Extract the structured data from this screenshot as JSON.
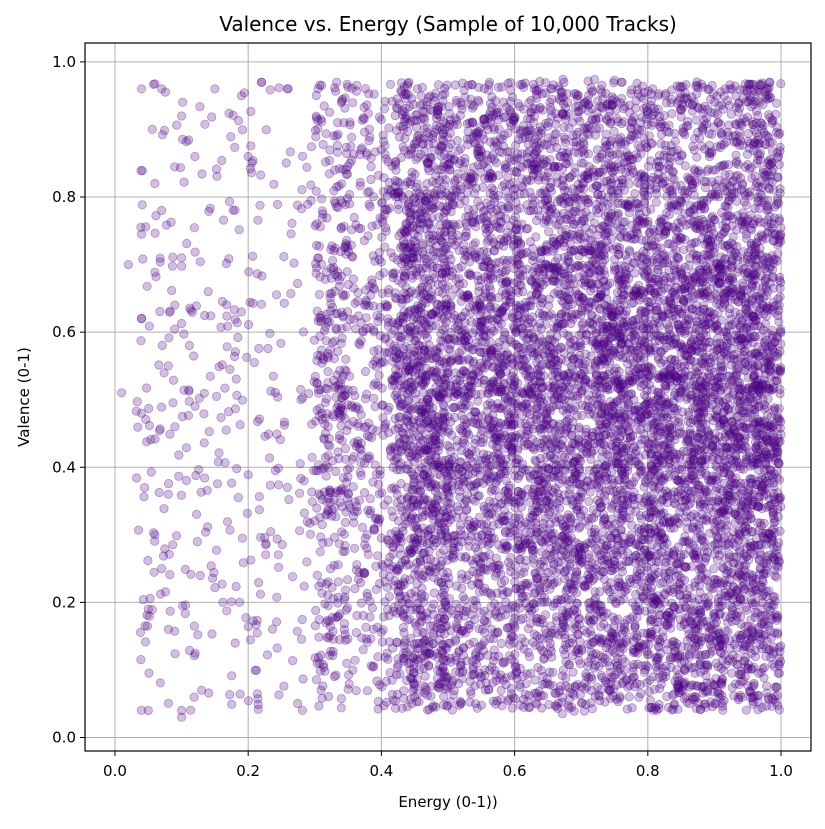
{
  "chart_data": {
    "type": "scatter",
    "title": "Valence vs. Energy (Sample of 10,000 Tracks)",
    "xlabel": "Energy (0-1))",
    "ylabel": "Valence (0-1)",
    "xlim": [
      -0.045,
      1.045
    ],
    "ylim": [
      -0.02,
      1.028
    ],
    "x_ticks": [
      0.0,
      0.2,
      0.4,
      0.6,
      0.8,
      1.0
    ],
    "x_tick_labels": [
      "0.0",
      "0.2",
      "0.4",
      "0.6",
      "0.8",
      "1.0"
    ],
    "y_ticks": [
      0.0,
      0.2,
      0.4,
      0.6,
      0.8,
      1.0
    ],
    "y_tick_labels": [
      "0.0",
      "0.2",
      "0.4",
      "0.6",
      "0.8",
      "1.0"
    ],
    "grid": true,
    "legend": "none",
    "point_color": "#4b0082",
    "point_alpha": 0.25,
    "n_points": 10000,
    "sample_points": [
      [
        0.01,
        0.51
      ],
      [
        0.02,
        0.7
      ],
      [
        0.04,
        0.96
      ],
      [
        0.04,
        0.62
      ],
      [
        0.04,
        0.48
      ],
      [
        0.06,
        0.82
      ],
      [
        0.07,
        0.96
      ],
      [
        0.07,
        0.78
      ],
      [
        0.08,
        0.55
      ],
      [
        0.09,
        0.64
      ],
      [
        0.1,
        0.71
      ],
      [
        0.1,
        0.92
      ],
      [
        0.1,
        0.03
      ],
      [
        0.1,
        0.04
      ],
      [
        0.12,
        0.86
      ],
      [
        0.14,
        0.66
      ],
      [
        0.15,
        0.96
      ],
      [
        0.19,
        0.95
      ],
      [
        0.2,
        0.86
      ],
      [
        0.22,
        0.97
      ],
      [
        0.26,
        0.96
      ],
      [
        0.34,
        0.94
      ],
      [
        0.05,
        0.19
      ],
      [
        0.06,
        0.3
      ],
      [
        0.07,
        0.25
      ],
      [
        0.08,
        0.16
      ],
      [
        0.08,
        0.36
      ],
      [
        0.09,
        0.46
      ],
      [
        0.05,
        0.04
      ],
      [
        0.13,
        0.07
      ]
    ]
  }
}
